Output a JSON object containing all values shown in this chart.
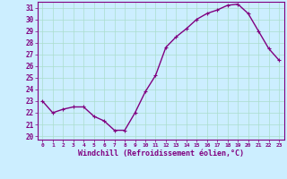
{
  "hours": [
    0,
    1,
    2,
    3,
    4,
    5,
    6,
    7,
    8,
    9,
    10,
    11,
    12,
    13,
    14,
    15,
    16,
    17,
    18,
    19,
    20,
    21,
    22,
    23
  ],
  "values": [
    23.0,
    22.0,
    22.3,
    22.5,
    22.5,
    21.7,
    21.3,
    20.5,
    20.5,
    22.0,
    23.8,
    25.2,
    27.6,
    28.5,
    29.2,
    30.0,
    30.5,
    30.8,
    31.2,
    31.3,
    30.5,
    29.0,
    27.5,
    26.5
  ],
  "line_color": "#800080",
  "marker": "+",
  "marker_size": 3.5,
  "linewidth": 1.0,
  "bg_color": "#cceeff",
  "grid_color": "#aaddcc",
  "tick_color": "#800080",
  "label_color": "#800080",
  "xlabel": "Windchill (Refroidissement éolien,°C)",
  "xlim": [
    -0.5,
    23.5
  ],
  "ylim": [
    20,
    32
  ],
  "yticks": [
    20,
    21,
    22,
    23,
    24,
    25,
    26,
    27,
    28,
    29,
    30,
    31
  ],
  "xticks": [
    0,
    1,
    2,
    3,
    4,
    5,
    6,
    7,
    8,
    9,
    10,
    11,
    12,
    13,
    14,
    15,
    16,
    17,
    18,
    19,
    20,
    21,
    22,
    23
  ],
  "xtick_labels": [
    "0",
    "1",
    "2",
    "3",
    "4",
    "5",
    "6",
    "7",
    "8",
    "9",
    "10",
    "11",
    "12",
    "13",
    "14",
    "15",
    "16",
    "17",
    "18",
    "19",
    "20",
    "21",
    "22",
    "23"
  ],
  "ytick_labels": [
    "20",
    "21",
    "22",
    "23",
    "24",
    "25",
    "26",
    "27",
    "28",
    "29",
    "30",
    "31"
  ]
}
